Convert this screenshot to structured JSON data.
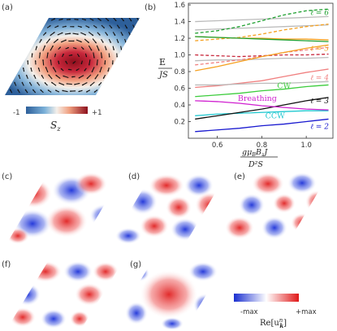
{
  "panel_labels": [
    "(a)",
    "(b)",
    "(c)",
    "(d)",
    "(e)",
    "(f)",
    "(g)"
  ],
  "colorbar_a": {
    "min": "-1",
    "max": "+1",
    "label": "S",
    "label_sub": "z"
  },
  "colorbar_g": {
    "min": "-max",
    "max": "+max",
    "label_prefix": "Re[u",
    "label_sup": "n",
    "label_sub": "k",
    "label_suffix": "]"
  },
  "colors": {
    "red": "#c8283c",
    "blue": "#3c64c8",
    "orange": "#f5a020",
    "green": "#1fa030",
    "lightgreen": "#3ccc3c",
    "magenta": "#d020d0",
    "cyan": "#20c8d0",
    "navy": "#1a1ad0",
    "black": "#111111",
    "salmon": "#f08080",
    "gray": "#bbbbbb"
  },
  "chart_data": {
    "type": "line",
    "ylabel_top": "E",
    "ylabel_bottom": "JS",
    "xlabel_top": "gμ",
    "xlabel_bottom": "D²S",
    "xlim": [
      0.47,
      1.12
    ],
    "ylim": [
      0.0,
      1.62
    ],
    "xticks": [
      "0.6",
      "0.8",
      "1.0"
    ],
    "yticks": [
      "0.2",
      "0.4",
      "0.6",
      "0.8",
      "1.0",
      "1.2",
      "1.4",
      "1.6"
    ],
    "xtick_values": [
      0.6,
      0.8,
      1.0
    ],
    "ytick_values": [
      0.2,
      0.4,
      0.6,
      0.8,
      1.0,
      1.2,
      1.4,
      1.6
    ],
    "x": [
      0.5,
      0.6,
      0.7,
      0.8,
      0.9,
      1.0,
      1.1
    ],
    "series": [
      {
        "name": "ℓ = 2",
        "color": "#1a1ad0",
        "dashed": false,
        "values": [
          0.08,
          0.1,
          0.12,
          0.15,
          0.17,
          0.2,
          0.23
        ]
      },
      {
        "name": "CCW",
        "color": "#20c8d0",
        "dashed": false,
        "values": [
          0.27,
          0.29,
          0.3,
          0.31,
          0.32,
          0.33,
          0.33
        ]
      },
      {
        "name": "ℓ = 3",
        "color": "#111111",
        "dashed": false,
        "values": [
          0.23,
          0.27,
          0.31,
          0.35,
          0.4,
          0.45,
          0.49
        ]
      },
      {
        "name": "Breathing",
        "color": "#d020d0",
        "dashed": false,
        "values": [
          0.45,
          0.44,
          0.42,
          0.39,
          0.37,
          0.35,
          0.34
        ]
      },
      {
        "name": "CW",
        "color": "#3ccc3c",
        "dashed": false,
        "values": [
          0.5,
          0.52,
          0.54,
          0.57,
          0.59,
          0.62,
          0.64
        ]
      },
      {
        "name": "ℓ = 4",
        "color": "#f08080",
        "dashed": false,
        "values": [
          0.61,
          0.63,
          0.66,
          0.69,
          0.74,
          0.79,
          0.83
        ]
      },
      {
        "name": "",
        "color": "#bbbbbb",
        "dashed": false,
        "values": [
          0.64,
          0.64,
          0.65,
          0.66,
          0.66,
          0.67,
          0.68
        ]
      },
      {
        "name": "",
        "color": "#bbbbbb",
        "dashed": false,
        "values": [
          0.93,
          0.94,
          0.94,
          0.95,
          0.96,
          0.96,
          0.97
        ]
      },
      {
        "name": "",
        "color": "#bbbbbb",
        "dashed": false,
        "values": [
          1.4,
          1.41,
          1.42,
          1.43,
          1.44,
          1.45,
          1.46
        ]
      },
      {
        "name": "",
        "color": "#bbbbbb",
        "dashed": false,
        "values": [
          1.3,
          1.31,
          1.32,
          1.33,
          1.34,
          1.35,
          1.36
        ]
      },
      {
        "name": "",
        "color": "#f08080",
        "dashed": true,
        "values": [
          0.88,
          0.91,
          0.94,
          0.98,
          1.03,
          1.06,
          1.09
        ]
      },
      {
        "name": "",
        "color": "#c8283c",
        "dashed": true,
        "values": [
          1.0,
          0.99,
          0.98,
          0.99,
          1.0,
          1.0,
          1.01
        ]
      },
      {
        "name": "ℓ = 5",
        "color": "#f5a020",
        "dashed": false,
        "values": [
          0.81,
          0.86,
          0.92,
          0.98,
          1.03,
          1.08,
          1.12
        ]
      },
      {
        "name": "",
        "color": "#f5a020",
        "dashed": true,
        "values": [
          1.17,
          1.19,
          1.21,
          1.25,
          1.3,
          1.34,
          1.37
        ]
      },
      {
        "name": "",
        "color": "#f5a020",
        "dashed": false,
        "values": [
          1.22,
          1.21,
          1.2,
          1.2,
          1.19,
          1.19,
          1.18
        ]
      },
      {
        "name": "",
        "color": "#1fa030",
        "dashed": false,
        "values": [
          1.22,
          1.21,
          1.2,
          1.19,
          1.18,
          1.17,
          1.16
        ]
      },
      {
        "name": "ℓ = 6",
        "color": "#1fa030",
        "dashed": true,
        "values": [
          1.26,
          1.29,
          1.34,
          1.41,
          1.48,
          1.53,
          1.55
        ]
      }
    ],
    "labels": [
      {
        "text": "ℓ = 6",
        "color": "#1fa030",
        "x": 1.06,
        "y": 1.48,
        "italic": true
      },
      {
        "text": "ℓ = 5",
        "color": "#f5a020",
        "x": 1.06,
        "y": 1.05,
        "italic": true
      },
      {
        "text": "ℓ = 4",
        "color": "#f08080",
        "x": 1.06,
        "y": 0.7,
        "italic": true
      },
      {
        "text": "CW",
        "color": "#3ccc3c",
        "x": 0.9,
        "y": 0.6,
        "italic": false
      },
      {
        "text": "Breathing",
        "color": "#d020d0",
        "x": 0.78,
        "y": 0.45,
        "italic": false
      },
      {
        "text": "ℓ = 3",
        "color": "#111111",
        "x": 1.06,
        "y": 0.42,
        "italic": true
      },
      {
        "text": "CCW",
        "color": "#20c8d0",
        "x": 0.86,
        "y": 0.24,
        "italic": false
      },
      {
        "text": "ℓ = 2",
        "color": "#1a1ad0",
        "x": 1.06,
        "y": 0.11,
        "italic": true
      }
    ]
  }
}
